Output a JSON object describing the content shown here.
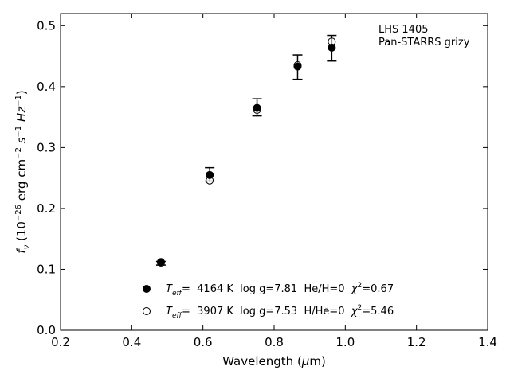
{
  "chart_data": {
    "type": "scatter",
    "annotation": [
      "LHS 1405",
      "Pan-STARRS grizy"
    ],
    "xlabel": {
      "text": "Wavelength (",
      "greek": "μ",
      "tail": "m)"
    },
    "ylabel": {
      "f_base": "f",
      "f_sub": "ν",
      "scale": " (10",
      "scale_exp": "−26",
      "units": " erg cm",
      "cm_exp": "−2",
      "s": " s",
      "s_exp": "−1",
      "hz": " Hz",
      "hz_exp": "−1",
      "close": ")"
    },
    "xlim": [
      0.2,
      1.4
    ],
    "ylim": [
      0.0,
      0.52
    ],
    "xticks": [
      0.2,
      0.4,
      0.6,
      0.8,
      1.0,
      1.2,
      1.4
    ],
    "yticks": [
      0.0,
      0.1,
      0.2,
      0.3,
      0.4,
      0.5
    ],
    "xtick_labels": [
      "0.2",
      "0.4",
      "0.6",
      "0.8",
      "1.0",
      "1.2",
      "1.4"
    ],
    "ytick_labels": [
      "0.0",
      "0.1",
      "0.2",
      "0.3",
      "0.4",
      "0.5"
    ],
    "grid": false,
    "legend_position": "lower-center",
    "observed": {
      "x": [
        0.482,
        0.619,
        0.752,
        0.866,
        0.962
      ],
      "y": [
        0.11,
        0.256,
        0.366,
        0.432,
        0.463
      ],
      "yerr": [
        0.003,
        0.011,
        0.014,
        0.02,
        0.021
      ]
    },
    "series": [
      {
        "marker": "filled-circle",
        "values": [
          0.112,
          0.255,
          0.365,
          0.433,
          0.464
        ],
        "label": {
          "teff_prefix": "T",
          "teff_sub": "eff",
          "text": "=  4164 K  log g=7.81  He/H=0  ",
          "chi": "χ",
          "chi_exp": "2",
          "chi_val": "=0.67"
        }
      },
      {
        "marker": "open-circle",
        "values": [
          0.111,
          0.246,
          0.362,
          0.435,
          0.474
        ],
        "label": {
          "teff_prefix": "T",
          "teff_sub": "eff",
          "text": "=  3907 K  log g=7.53  H/He=0  ",
          "chi": "χ",
          "chi_exp": "2",
          "chi_val": "=5.46"
        }
      }
    ]
  }
}
